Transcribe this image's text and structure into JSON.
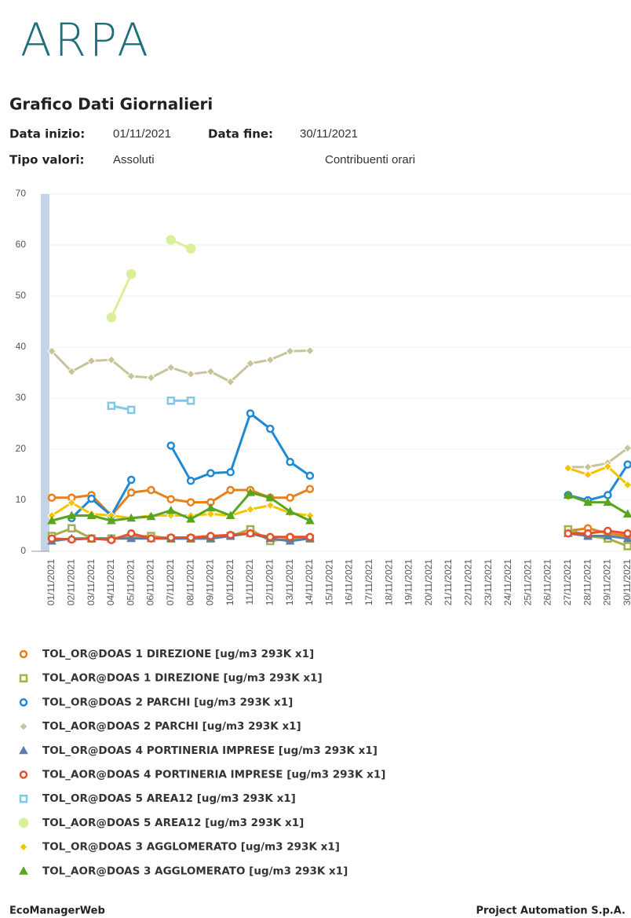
{
  "header": {
    "logo": "ARPA",
    "title": "Grafico Dati Giornalieri",
    "start_label": "Data inizio:",
    "start_value": "01/11/2021",
    "end_label": "Data fine:",
    "end_value": "30/11/2021",
    "type_label": "Tipo valori:",
    "type_value": "Assoluti",
    "contrib": "Contribuenti orari"
  },
  "footer": {
    "left": "EcoManagerWeb",
    "right": "Project Automation S.p.A."
  },
  "chart_data": {
    "type": "line",
    "grid": true,
    "categories": [
      "01/11/2021",
      "02/11/2021",
      "03/11/2021",
      "04/11/2021",
      "05/11/2021",
      "06/11/2021",
      "07/11/2021",
      "08/11/2021",
      "09/11/2021",
      "10/11/2021",
      "11/11/2021",
      "12/11/2021",
      "13/11/2021",
      "14/11/2021",
      "15/11/2021",
      "16/11/2021",
      "17/11/2021",
      "18/11/2021",
      "19/11/2021",
      "20/11/2021",
      "21/11/2021",
      "22/11/2021",
      "23/11/2021",
      "24/11/2021",
      "25/11/2021",
      "26/11/2021",
      "27/11/2021",
      "28/11/2021",
      "29/11/2021",
      "30/11/2021"
    ],
    "ylim": [
      0,
      70
    ],
    "yticks": [
      0,
      10,
      20,
      30,
      40,
      50,
      60,
      70
    ],
    "series": [
      {
        "name": "TOL_OR@DOAS 1 DIREZIONE [ug/m3 293K x1]",
        "color": "#e8801a",
        "marker": "circle",
        "values": [
          10.5,
          10.5,
          11,
          7,
          11.5,
          12,
          10.2,
          9.6,
          9.6,
          12,
          12,
          10.5,
          10.5,
          12.2,
          null,
          null,
          null,
          null,
          null,
          null,
          null,
          null,
          null,
          null,
          null,
          null,
          4,
          4.5,
          3.5,
          3
        ]
      },
      {
        "name": "TOL_AOR@DOAS 1 DIREZIONE [ug/m3 293K x1]",
        "color": "#a5b04a",
        "marker": "square",
        "values": [
          3,
          4.5,
          2.5,
          2.5,
          2.8,
          3,
          2.5,
          2.5,
          2.5,
          3,
          4.3,
          2,
          2.5,
          2.5,
          null,
          null,
          null,
          null,
          null,
          null,
          null,
          null,
          null,
          null,
          null,
          null,
          4.3,
          3,
          2.5,
          1
        ]
      },
      {
        "name": "TOL_OR@DOAS 2 PARCHI [ug/m3 293K x1]",
        "color": "#1e8ad6",
        "marker": "circle",
        "values": [
          null,
          6.5,
          10.3,
          7,
          14,
          null,
          20.7,
          13.8,
          15.3,
          15.5,
          27,
          24,
          17.5,
          14.8,
          null,
          null,
          null,
          null,
          null,
          null,
          null,
          null,
          null,
          null,
          null,
          null,
          11,
          10,
          11,
          17
        ]
      },
      {
        "name": "TOL_AOR@DOAS 2 PARCHI [ug/m3 293K x1]",
        "color": "#c9c39a",
        "marker": "diamond",
        "values": [
          39.2,
          35.2,
          37.3,
          37.5,
          34.3,
          34,
          36,
          34.7,
          35.2,
          33.2,
          36.8,
          37.5,
          39.2,
          39.3,
          null,
          null,
          null,
          null,
          null,
          null,
          null,
          null,
          null,
          null,
          null,
          null,
          16.5,
          16.5,
          17.3,
          20.2
        ]
      },
      {
        "name": "TOL_OR@DOAS 4 PORTINERIA IMPRESE [ug/m3 293K x1]",
        "color": "#5b7fa6",
        "marker": "triangle",
        "values": [
          2,
          2.5,
          2.5,
          2.5,
          2.5,
          2.5,
          2.5,
          2.5,
          2.5,
          3,
          3.5,
          2.5,
          2,
          2.5,
          null,
          null,
          null,
          null,
          null,
          null,
          null,
          null,
          null,
          null,
          null,
          null,
          3.5,
          3,
          3,
          2.5
        ]
      },
      {
        "name": "TOL_AOR@DOAS 4 PORTINERIA IMPRESE [ug/m3 293K x1]",
        "color": "#e8502a",
        "marker": "circle",
        "values": [
          2.5,
          2.3,
          2.5,
          2.2,
          3.5,
          2.5,
          2.7,
          2.7,
          3,
          3.2,
          3.5,
          2.8,
          2.8,
          2.8,
          null,
          null,
          null,
          null,
          null,
          null,
          null,
          null,
          null,
          null,
          null,
          null,
          3.5,
          3.5,
          4,
          3.5
        ]
      },
      {
        "name": "TOL_OR@DOAS 5 AREA12 [ug/m3 293K x1]",
        "color": "#7fc8e8",
        "marker": "square",
        "values": [
          null,
          null,
          null,
          28.5,
          27.7,
          null,
          29.5,
          29.5,
          null,
          null,
          null,
          null,
          null,
          null,
          null,
          null,
          null,
          null,
          null,
          null,
          null,
          null,
          null,
          null,
          null,
          null,
          null,
          null,
          null,
          null
        ]
      },
      {
        "name": "TOL_AOR@DOAS 5 AREA12 [ug/m3 293K x1]",
        "color": "#d9ef9a",
        "marker": "dot",
        "values": [
          null,
          null,
          null,
          45.8,
          54.3,
          null,
          61,
          59.3,
          null,
          null,
          null,
          null,
          null,
          null,
          null,
          null,
          null,
          null,
          null,
          null,
          null,
          null,
          null,
          null,
          null,
          null,
          null,
          null,
          null,
          null
        ]
      },
      {
        "name": "TOL_OR@DOAS 3 AGGLOMERATO [ug/m3 293K x1]",
        "color": "#f5c400",
        "marker": "diamond",
        "values": [
          7,
          9.5,
          7.3,
          7,
          6.5,
          7,
          7,
          7,
          7.3,
          7,
          8.2,
          9,
          7.5,
          7,
          null,
          null,
          null,
          null,
          null,
          null,
          null,
          null,
          null,
          null,
          null,
          null,
          16.3,
          15,
          16.6,
          13
        ]
      },
      {
        "name": "TOL_AOR@DOAS 3 AGGLOMERATO [ug/m3 293K x1]",
        "color": "#5aa51e",
        "marker": "triangle",
        "values": [
          6,
          7,
          7,
          6,
          6.5,
          6.8,
          8,
          6.3,
          8.5,
          7,
          11.5,
          10.5,
          7.8,
          6,
          null,
          null,
          null,
          null,
          null,
          null,
          null,
          null,
          null,
          null,
          null,
          null,
          11,
          9.6,
          9.6,
          7.3
        ]
      }
    ]
  }
}
